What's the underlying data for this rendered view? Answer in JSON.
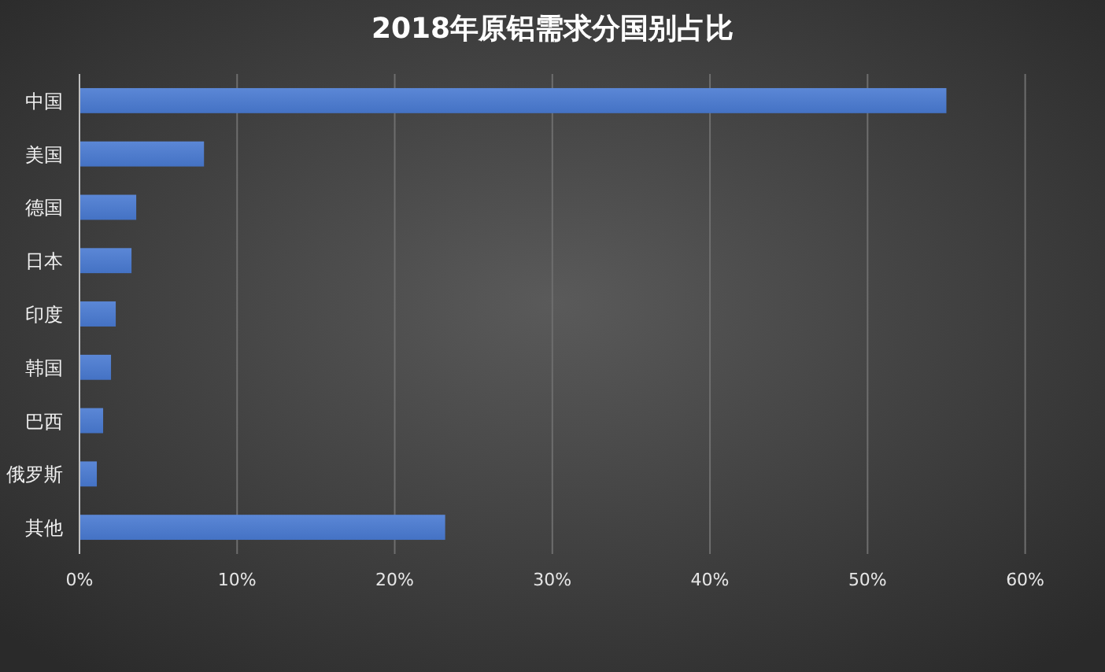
{
  "chart_data": {
    "type": "bar",
    "orientation": "horizontal",
    "title": "2018年原铝需求分国别占比",
    "categories": [
      "中国",
      "美国",
      "德国",
      "日本",
      "印度",
      "韩国",
      "巴西",
      "俄罗斯",
      "其他"
    ],
    "values": [
      55,
      7.9,
      3.6,
      3.3,
      2.3,
      2.0,
      1.5,
      1.1,
      23.2
    ],
    "color": "#4472c4",
    "xlim": [
      0,
      60
    ],
    "xticks": [
      {
        "value": 0,
        "label": "0%"
      },
      {
        "value": 10,
        "label": "10%"
      },
      {
        "value": 20,
        "label": "20%"
      },
      {
        "value": 30,
        "label": "30%"
      },
      {
        "value": 40,
        "label": "40%"
      },
      {
        "value": 50,
        "label": "50%"
      },
      {
        "value": 60,
        "label": "60%"
      }
    ],
    "grid": "x"
  }
}
